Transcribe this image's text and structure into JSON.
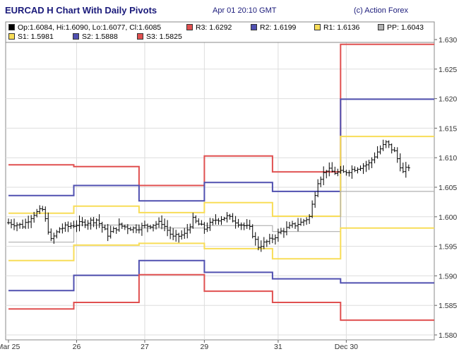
{
  "header": {
    "title": "EURCAD H Chart With Daily Pivots",
    "timestamp": "Apr 01 20:10 GMT",
    "credit": "(c) Action Forex"
  },
  "legend": {
    "ohlc": "Op:1.6084, Hi:1.6090, Lo:1.6077, Cl:1.6085",
    "r3": "R3: 1.6292",
    "r2": "R2: 1.6199",
    "r1": "R1: 1.6136",
    "pp": "PP: 1.6043",
    "s1": "S1: 1.5981",
    "s2": "S2: 1.5888",
    "s3": "S3: 1.5825"
  },
  "colors": {
    "title": "#1a1a7a",
    "r3": "#e05050",
    "r2": "#5050b0",
    "r1": "#f8dd58",
    "pp": "#b0b0b0",
    "s1": "#f8dd58",
    "s2": "#5050b0",
    "s3": "#e05050",
    "bar": "#000000",
    "grid": "#dddddd"
  },
  "chart_data": {
    "type": "line",
    "grid": true,
    "y_axis_side": "right",
    "ylim": [
      1.58,
      1.631
    ],
    "xlim": [
      0,
      150
    ],
    "y_ticks": [
      "1.580",
      "1.585",
      "1.590",
      "1.595",
      "1.600",
      "1.605",
      "1.610",
      "1.615",
      "1.620",
      "1.625",
      "1.630"
    ],
    "x_ticks": [
      {
        "label": "Mar 25",
        "x": 0
      },
      {
        "label": "26",
        "x": 24
      },
      {
        "label": "27",
        "x": 48
      },
      {
        "label": "29",
        "x": 69
      },
      {
        "label": "31",
        "x": 95
      },
      {
        "label": "Dec 30",
        "x": 119
      }
    ],
    "pivot_days": [
      {
        "x0": 0,
        "x1": 23,
        "R3": 1.6088,
        "R2": 1.6036,
        "R1": 1.6006,
        "PP": 1.5957,
        "S1": 1.5926,
        "S2": 1.5875,
        "S3": 1.5844
      },
      {
        "x0": 23,
        "x1": 46,
        "R3": 1.6085,
        "R2": 1.6053,
        "R1": 1.6018,
        "PP": 1.5986,
        "S1": 1.5952,
        "S2": 1.5901,
        "S3": 1.5855
      },
      {
        "x0": 46,
        "x1": 69,
        "R3": 1.6053,
        "R2": 1.6027,
        "R1": 1.6007,
        "PP": 1.5981,
        "S1": 1.5955,
        "S2": 1.5926,
        "S3": 1.5902
      },
      {
        "x0": 69,
        "x1": 93,
        "R3": 1.6103,
        "R2": 1.6058,
        "R1": 1.6024,
        "PP": 1.5985,
        "S1": 1.5946,
        "S2": 1.5906,
        "S3": 1.5874
      },
      {
        "x0": 93,
        "x1": 117,
        "R3": 1.6076,
        "R2": 1.6043,
        "R1": 1.6001,
        "PP": 1.5975,
        "S1": 1.5929,
        "S2": 1.5895,
        "S3": 1.5855
      },
      {
        "x0": 117,
        "x1": 150,
        "R3": 1.6292,
        "R2": 1.6199,
        "R1": 1.6136,
        "PP": 1.6043,
        "S1": 1.5981,
        "S2": 1.5888,
        "S3": 1.5825
      }
    ],
    "close_path": [
      [
        0,
        1.599
      ],
      [
        5,
        1.5985
      ],
      [
        9,
        1.6005
      ],
      [
        12,
        1.6012
      ],
      [
        15,
        1.596
      ],
      [
        18,
        1.598
      ],
      [
        22,
        1.5985
      ],
      [
        27,
        1.599
      ],
      [
        31,
        1.5995
      ],
      [
        35,
        1.597
      ],
      [
        39,
        1.5985
      ],
      [
        44,
        1.598
      ],
      [
        49,
        1.5985
      ],
      [
        54,
        1.599
      ],
      [
        58,
        1.5965
      ],
      [
        62,
        1.597
      ],
      [
        65,
        1.5995
      ],
      [
        69,
        1.598
      ],
      [
        73,
        1.5995
      ],
      [
        77,
        1.6
      ],
      [
        81,
        1.599
      ],
      [
        85,
        1.598
      ],
      [
        88,
        1.595
      ],
      [
        92,
        1.596
      ],
      [
        96,
        1.5975
      ],
      [
        100,
        1.5985
      ],
      [
        103,
        1.599
      ],
      [
        106,
        1.6
      ],
      [
        109,
        1.606
      ],
      [
        112,
        1.608
      ],
      [
        115,
        1.6075
      ],
      [
        118,
        1.6075
      ],
      [
        121,
        1.608
      ],
      [
        124,
        1.6085
      ],
      [
        127,
        1.609
      ],
      [
        130,
        1.611
      ],
      [
        133,
        1.6125
      ],
      [
        136,
        1.611
      ],
      [
        139,
        1.6075
      ],
      [
        141,
        1.6085
      ]
    ]
  }
}
